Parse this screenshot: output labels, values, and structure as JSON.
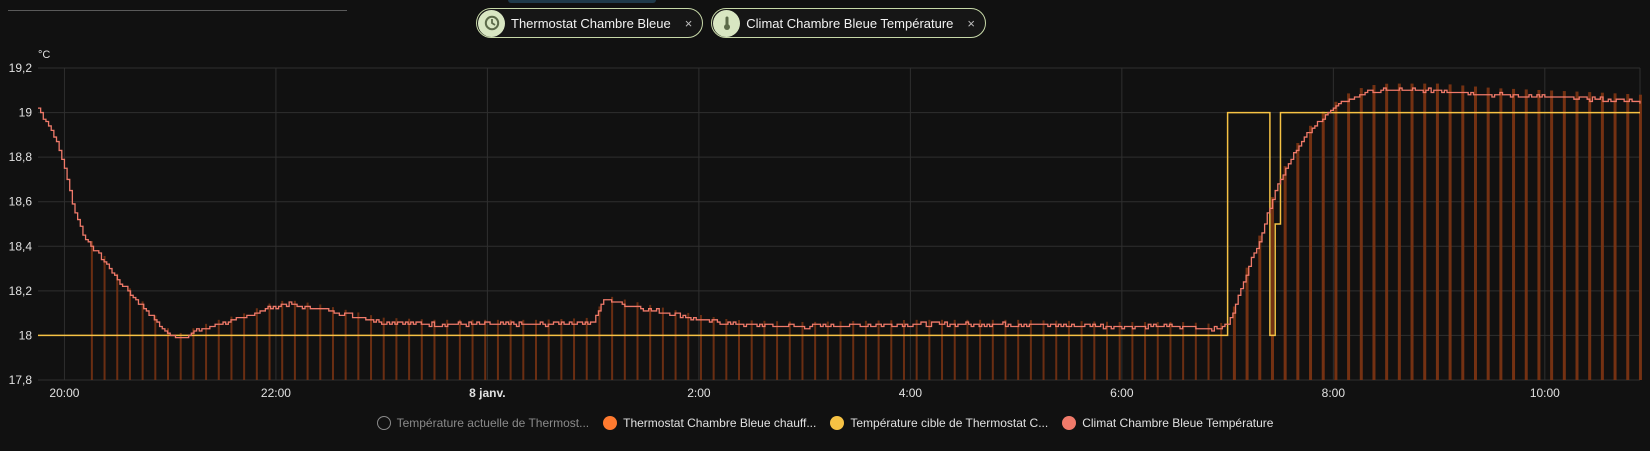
{
  "chips": [
    {
      "label": "Thermostat Chambre Bleue",
      "close": "×",
      "icon": "thermostat-icon"
    },
    {
      "label": "Climat Chambre Bleue Température",
      "close": "×",
      "icon": "thermometer-icon"
    }
  ],
  "legend": [
    {
      "label": "Température actuelle de Thermost...",
      "color": "#888888",
      "hidden": true
    },
    {
      "label": "Thermostat Chambre Bleue chauff...",
      "color": "#ff7a2f",
      "hidden": false
    },
    {
      "label": "Température cible de Thermostat C...",
      "color": "#f6c244",
      "hidden": false
    },
    {
      "label": "Climat Chambre Bleue Température",
      "color": "#f07a6a",
      "hidden": false
    }
  ],
  "chart_data": {
    "type": "line",
    "ylabel": "°C",
    "ylim": [
      17.8,
      19.2
    ],
    "yticks": [
      "19,2",
      "19",
      "18,8",
      "18,6",
      "18,4",
      "18,2",
      "18",
      "17,8"
    ],
    "yticks_values": [
      19.2,
      19.0,
      18.8,
      18.6,
      18.4,
      18.2,
      18.0,
      17.8
    ],
    "xlim_hours": [
      19.75,
      34.9
    ],
    "xticks": [
      {
        "label": "20:00",
        "hour": 20,
        "bold": false
      },
      {
        "label": "22:00",
        "hour": 22,
        "bold": false
      },
      {
        "label": "8 janv.",
        "hour": 24,
        "bold": true
      },
      {
        "label": "2:00",
        "hour": 26,
        "bold": false
      },
      {
        "label": "4:00",
        "hour": 28,
        "bold": false
      },
      {
        "label": "6:00",
        "hour": 30,
        "bold": false
      },
      {
        "label": "8:00",
        "hour": 32,
        "bold": false
      },
      {
        "label": "10:00",
        "hour": 34,
        "bold": false
      }
    ],
    "grid": true,
    "series": [
      {
        "name": "Climat Chambre Bleue Température",
        "color": "#f07a6a",
        "points": [
          [
            19.75,
            19.02
          ],
          [
            19.9,
            18.9
          ],
          [
            20.0,
            18.75
          ],
          [
            20.1,
            18.55
          ],
          [
            20.2,
            18.43
          ],
          [
            20.35,
            18.35
          ],
          [
            20.5,
            18.25
          ],
          [
            20.65,
            18.17
          ],
          [
            20.8,
            18.1
          ],
          [
            20.9,
            18.04
          ],
          [
            21.0,
            18.0
          ],
          [
            21.1,
            17.99
          ],
          [
            21.25,
            18.02
          ],
          [
            21.45,
            18.05
          ],
          [
            21.7,
            18.08
          ],
          [
            21.9,
            18.12
          ],
          [
            22.1,
            18.14
          ],
          [
            22.4,
            18.12
          ],
          [
            22.7,
            18.09
          ],
          [
            23.0,
            18.06
          ],
          [
            23.5,
            18.05
          ],
          [
            24.0,
            18.05
          ],
          [
            24.5,
            18.05
          ],
          [
            25.0,
            18.06
          ],
          [
            25.1,
            18.16
          ],
          [
            25.3,
            18.14
          ],
          [
            25.6,
            18.11
          ],
          [
            25.9,
            18.08
          ],
          [
            26.3,
            18.05
          ],
          [
            27.0,
            18.04
          ],
          [
            28.0,
            18.05
          ],
          [
            29.0,
            18.05
          ],
          [
            30.0,
            18.04
          ],
          [
            30.6,
            18.04
          ],
          [
            30.9,
            18.03
          ],
          [
            31.0,
            18.05
          ],
          [
            31.05,
            18.1
          ],
          [
            31.15,
            18.25
          ],
          [
            31.3,
            18.43
          ],
          [
            31.45,
            18.65
          ],
          [
            31.6,
            18.8
          ],
          [
            31.75,
            18.9
          ],
          [
            31.9,
            18.98
          ],
          [
            32.1,
            19.05
          ],
          [
            32.3,
            19.09
          ],
          [
            32.5,
            19.1
          ],
          [
            33.0,
            19.1
          ],
          [
            33.5,
            19.08
          ],
          [
            34.0,
            19.07
          ],
          [
            34.5,
            19.06
          ],
          [
            34.9,
            19.05
          ]
        ]
      },
      {
        "name": "Température cible de Thermostat C...",
        "color": "#f6c244",
        "points": [
          [
            19.75,
            18.0
          ],
          [
            31.0,
            18.0
          ],
          [
            31.0,
            19.0
          ],
          [
            31.4,
            19.0
          ],
          [
            31.4,
            18.0
          ],
          [
            31.45,
            18.0
          ],
          [
            31.45,
            18.5
          ],
          [
            31.5,
            18.5
          ],
          [
            31.5,
            19.0
          ],
          [
            34.9,
            19.0
          ]
        ]
      },
      {
        "name": "Thermostat Chambre Bleue chauff...",
        "color": "#ff7a2f",
        "note_values": "heating active periods",
        "heating_periods_hours": [
          [
            31.0,
            34.9
          ]
        ]
      }
    ]
  }
}
